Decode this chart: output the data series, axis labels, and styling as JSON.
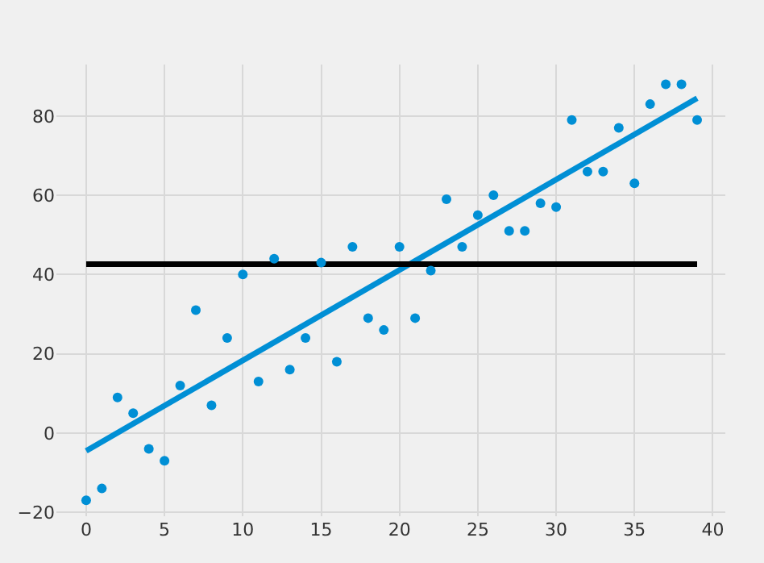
{
  "chart_data": {
    "type": "scatter",
    "xlim": [
      -1.9,
      40.8
    ],
    "xticks": [
      0,
      5,
      10,
      15,
      20,
      25,
      30,
      35,
      40
    ],
    "ylim": [
      -21,
      93
    ],
    "yticks": [
      -20,
      0,
      20,
      40,
      60,
      80
    ],
    "grid": true,
    "series": [
      {
        "marker": "circle",
        "color": "#008fd5",
        "x": [
          0,
          1,
          2,
          3,
          4,
          5,
          6,
          7,
          8,
          9,
          10,
          11,
          12,
          13,
          14,
          15,
          16,
          17,
          18,
          19,
          20,
          21,
          22,
          23,
          24,
          25,
          26,
          27,
          28,
          29,
          30,
          31,
          32,
          33,
          34,
          35,
          36,
          37,
          38,
          39
        ],
        "values": [
          -17,
          -14,
          9,
          5,
          -4,
          -7,
          12,
          31,
          7,
          24,
          40,
          13,
          44,
          16,
          24,
          43,
          18,
          47,
          29,
          26,
          47,
          29,
          41,
          59,
          47,
          55,
          60,
          51,
          51,
          58,
          57,
          79,
          66,
          66,
          77,
          63,
          83,
          88,
          88,
          79
        ]
      },
      {
        "type": "line",
        "marker": "none",
        "color": "#008fd5",
        "x": [
          0,
          39
        ],
        "values": [
          -4.5,
          84.5
        ]
      },
      {
        "type": "line",
        "marker": "none",
        "color": "#000000",
        "x": [
          0,
          39
        ],
        "values": [
          42.6,
          42.6
        ]
      }
    ]
  }
}
